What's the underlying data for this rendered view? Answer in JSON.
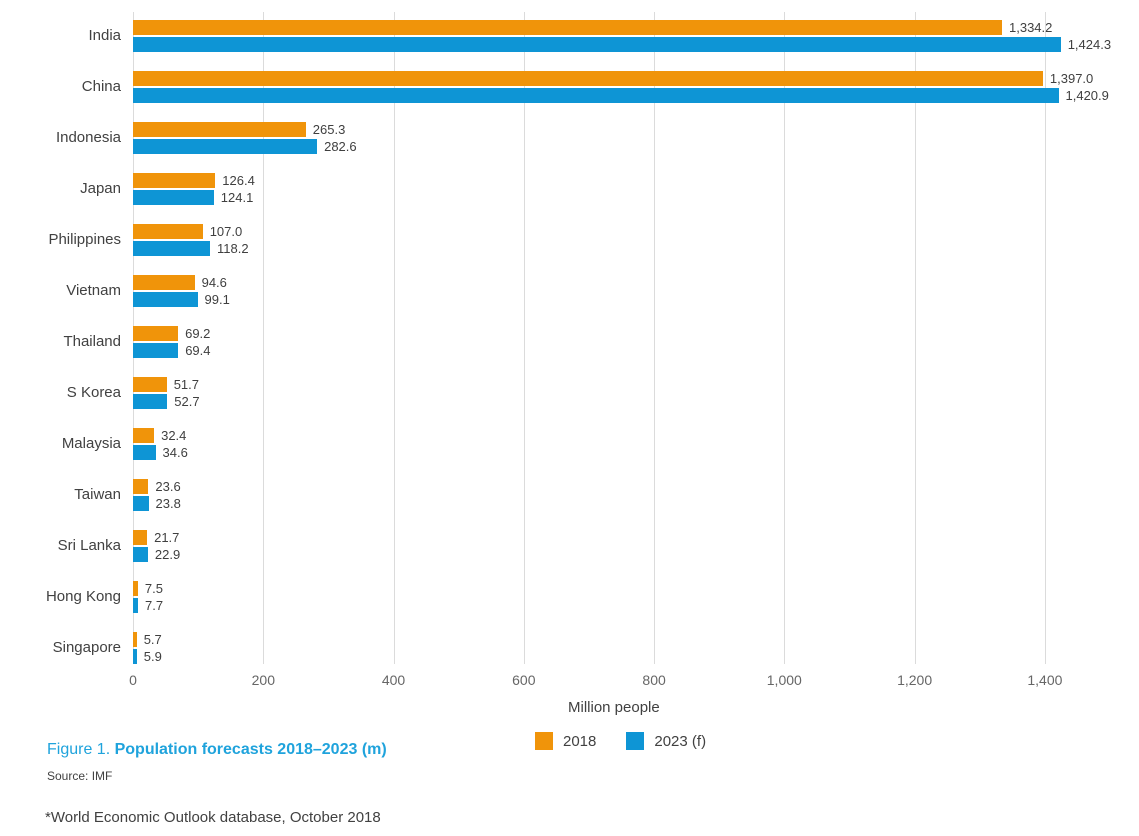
{
  "chart_data": {
    "type": "bar",
    "orientation": "horizontal",
    "categories": [
      "India",
      "China",
      "Indonesia",
      "Japan",
      "Philippines",
      "Vietnam",
      "Thailand",
      "S Korea",
      "Malaysia",
      "Taiwan",
      "Sri Lanka",
      "Hong Kong",
      "Singapore"
    ],
    "series": [
      {
        "name": "2018",
        "color": "#F0940A",
        "values": [
          1334.2,
          1397.0,
          265.3,
          126.4,
          107.0,
          94.6,
          69.2,
          51.7,
          32.4,
          23.6,
          21.7,
          7.5,
          5.7
        ],
        "display_values": [
          "1,334.2",
          "1,397.0",
          "265.3",
          "126.4",
          "107.0",
          "94.6",
          "69.2",
          "51.7",
          "32.4",
          "23.6",
          "21.7",
          "7.5",
          "5.7"
        ]
      },
      {
        "name": "2023 (f)",
        "color": "#0E95D5",
        "values": [
          1424.3,
          1420.9,
          282.6,
          124.1,
          118.2,
          99.1,
          69.4,
          52.7,
          34.6,
          23.8,
          22.9,
          7.7,
          5.9
        ],
        "display_values": [
          "1,424.3",
          "1,420.9",
          "282.6",
          "124.1",
          "118.2",
          "99.1",
          "69.4",
          "52.7",
          "34.6",
          "23.8",
          "22.9",
          "7.7",
          "5.9"
        ]
      }
    ],
    "xlabel": "Million people",
    "x_ticks": [
      "0",
      "200",
      "400",
      "600",
      "800",
      "1,000",
      "1,200",
      "1,400"
    ],
    "x_tick_values": [
      0,
      200,
      400,
      600,
      800,
      1000,
      1200,
      1400
    ],
    "xlim": [
      0,
      1500
    ],
    "grid": "vertical",
    "legend_position": "bottom"
  },
  "caption": {
    "figure_label": "Figure 1.",
    "title": "Population forecasts 2018–2023 (m)",
    "source": "Source: IMF"
  },
  "footnote": "*World Economic Outlook database, October 2018",
  "colors": {
    "series_2018": "#F0940A",
    "series_2023": "#0E95D5",
    "caption_blue": "#1FA3DC",
    "gridline": "#DBDBDB",
    "label_text": "#414141",
    "value_text": "#3F3F3F",
    "tick_text": "#666666"
  }
}
